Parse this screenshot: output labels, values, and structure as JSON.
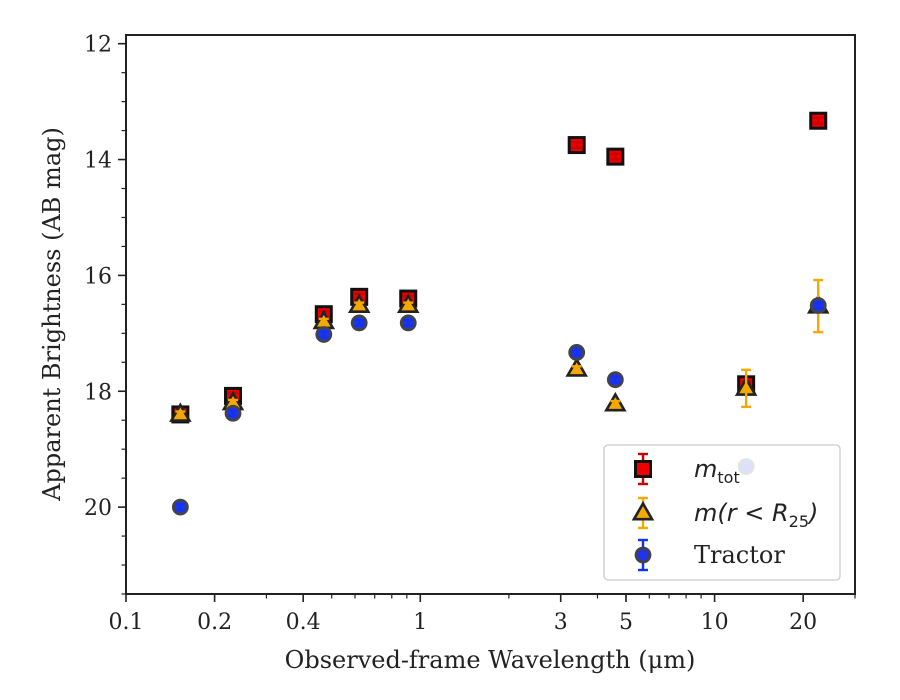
{
  "chart_data": {
    "type": "scatter",
    "xlabel": "Observed-frame Wavelength (μm)",
    "ylabel": "Apparent Brightness (AB mag)",
    "xscale": "log",
    "xlim": [
      0.1,
      30
    ],
    "ylim": [
      21.5,
      11.85
    ],
    "y_inverted": true,
    "xticks": [
      {
        "value": 0.1,
        "label": "0.1"
      },
      {
        "value": 0.2,
        "label": "0.2"
      },
      {
        "value": 0.4,
        "label": "0.4"
      },
      {
        "value": 1,
        "label": "1"
      },
      {
        "value": 3,
        "label": "3"
      },
      {
        "value": 5,
        "label": "5"
      },
      {
        "value": 10,
        "label": "10"
      },
      {
        "value": 20,
        "label": "20"
      }
    ],
    "yticks": [
      {
        "value": 12,
        "label": "12"
      },
      {
        "value": 14,
        "label": "14"
      },
      {
        "value": 16,
        "label": "16"
      },
      {
        "value": 18,
        "label": "18"
      },
      {
        "value": 20,
        "label": "20"
      }
    ],
    "legend_position": "lower-right",
    "series": [
      {
        "name": "m_tot",
        "legend": {
          "base": "m",
          "sub": "tot"
        },
        "marker": "square",
        "color": "#ee0000",
        "edge": "#111111",
        "ecolor": "#cc0000",
        "points": [
          {
            "x": 0.153,
            "y": 18.4,
            "err": 0.05
          },
          {
            "x": 0.231,
            "y": 18.08,
            "err": 0.05
          },
          {
            "x": 0.47,
            "y": 16.67,
            "err": 0.05
          },
          {
            "x": 0.62,
            "y": 16.37,
            "err": 0.05
          },
          {
            "x": 0.91,
            "y": 16.4,
            "err": 0.05
          },
          {
            "x": 3.4,
            "y": 13.75,
            "err": 0.05
          },
          {
            "x": 4.6,
            "y": 13.95,
            "err": 0.05
          },
          {
            "x": 12.8,
            "y": 17.88,
            "err": 0.05
          },
          {
            "x": 22.5,
            "y": 13.33,
            "err": 0.05
          }
        ]
      },
      {
        "name": "m(r < R25)",
        "legend": {
          "base": "m(r < R",
          "sub": "25",
          "tail": ")"
        },
        "marker": "triangle",
        "color": "#f5a800",
        "edge": "#222222",
        "ecolor": "#f5a800",
        "points": [
          {
            "x": 0.153,
            "y": 18.4,
            "err": 0.05
          },
          {
            "x": 0.231,
            "y": 18.2,
            "err": 0.05
          },
          {
            "x": 0.47,
            "y": 16.8,
            "err": 0.05
          },
          {
            "x": 0.62,
            "y": 16.52,
            "err": 0.05
          },
          {
            "x": 0.91,
            "y": 16.52,
            "err": 0.05
          },
          {
            "x": 3.4,
            "y": 17.62,
            "err": 0.05
          },
          {
            "x": 4.6,
            "y": 18.22,
            "err": 0.05
          },
          {
            "x": 12.8,
            "y": 17.95,
            "err": 0.32
          },
          {
            "x": 22.5,
            "y": 16.53,
            "err": 0.45
          }
        ]
      },
      {
        "name": "Tractor",
        "legend": {
          "base": "Tractor"
        },
        "marker": "circle",
        "color": "#2233ee",
        "edge": "#444444",
        "ecolor": "#1133ee",
        "points": [
          {
            "x": 0.153,
            "y": 20.0,
            "err": 0.05
          },
          {
            "x": 0.231,
            "y": 18.38,
            "err": 0.05
          },
          {
            "x": 0.47,
            "y": 17.02,
            "err": 0.05
          },
          {
            "x": 0.62,
            "y": 16.82,
            "err": 0.05
          },
          {
            "x": 0.91,
            "y": 16.82,
            "err": 0.05
          },
          {
            "x": 3.4,
            "y": 17.33,
            "err": 0.05
          },
          {
            "x": 4.6,
            "y": 17.8,
            "err": 0.05
          },
          {
            "x": 12.8,
            "y": 19.3,
            "err": 0.05
          },
          {
            "x": 22.5,
            "y": 16.52,
            "err": 0.05
          }
        ]
      }
    ]
  }
}
